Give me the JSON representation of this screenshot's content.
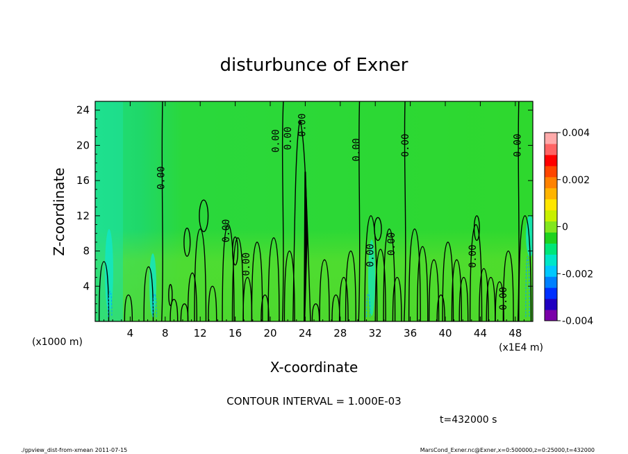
{
  "chart_data": {
    "type": "heatmap",
    "title": "disturbunce of Exner",
    "xlabel": "X-coordinate",
    "ylabel": "Z-coordinate",
    "x_unit_left": "(x1000 m)",
    "x_unit_right": "(x1E4 m)",
    "xlim": [
      0,
      50
    ],
    "ylim": [
      0,
      25
    ],
    "x_ticks": [
      "4",
      "8",
      "12",
      "16",
      "20",
      "24",
      "28",
      "32",
      "36",
      "40",
      "44",
      "48"
    ],
    "x_tick_values": [
      4,
      8,
      12,
      16,
      20,
      24,
      28,
      32,
      36,
      40,
      44,
      48
    ],
    "y_ticks": [
      "4",
      "8",
      "12",
      "16",
      "20",
      "24"
    ],
    "y_tick_values": [
      4,
      8,
      12,
      16,
      20,
      24
    ],
    "colorbar": {
      "min": -0.004,
      "max": 0.004,
      "tick_labels": [
        "0.004",
        "0.002",
        "0",
        "-0.002",
        "-0.004"
      ],
      "tick_values": [
        0.004,
        0.002,
        0,
        -0.002,
        -0.004
      ],
      "colors": [
        "#7a00a8",
        "#2000c0",
        "#0030ff",
        "#0080ff",
        "#00c8ff",
        "#00e6c8",
        "#00e678",
        "#1ed21e",
        "#82e61e",
        "#c8f000",
        "#ffe600",
        "#ffb400",
        "#ff8200",
        "#ff4600",
        "#ff0000",
        "#ff6464",
        "#ffaaaa"
      ]
    },
    "contour_labels": [
      {
        "text": "0.00",
        "x": 7.9,
        "y": 16.3
      },
      {
        "text": "0.00",
        "x": 15.3,
        "y": 10.3
      },
      {
        "text": "0.00",
        "x": 17.6,
        "y": 6.5
      },
      {
        "text": "0.00",
        "x": 21.0,
        "y": 20.5
      },
      {
        "text": "0.00",
        "x": 22.4,
        "y": 20.8
      },
      {
        "text": "0.00",
        "x": 24.0,
        "y": 22.3
      },
      {
        "text": "0.00",
        "x": 30.2,
        "y": 19.5
      },
      {
        "text": "0.00",
        "x": 31.8,
        "y": 7.5
      },
      {
        "text": "0.00",
        "x": 34.2,
        "y": 8.8
      },
      {
        "text": "0.00",
        "x": 35.8,
        "y": 20.0
      },
      {
        "text": "0.00",
        "x": 43.5,
        "y": 7.4
      },
      {
        "text": "0.00",
        "x": 47.0,
        "y": 2.6
      },
      {
        "text": "0.00",
        "x": 48.6,
        "y": 20.0
      }
    ]
  },
  "contour_interval": "CONTOUR INTERVAL = 1.000E-03",
  "time_label": "t=432000 s",
  "footer_left": "./gpview_dist-from-xmean  2011-07-15",
  "footer_right": "MarsCond_Exner.nc@Exner,x=0:500000,z=0:25000,t=432000"
}
